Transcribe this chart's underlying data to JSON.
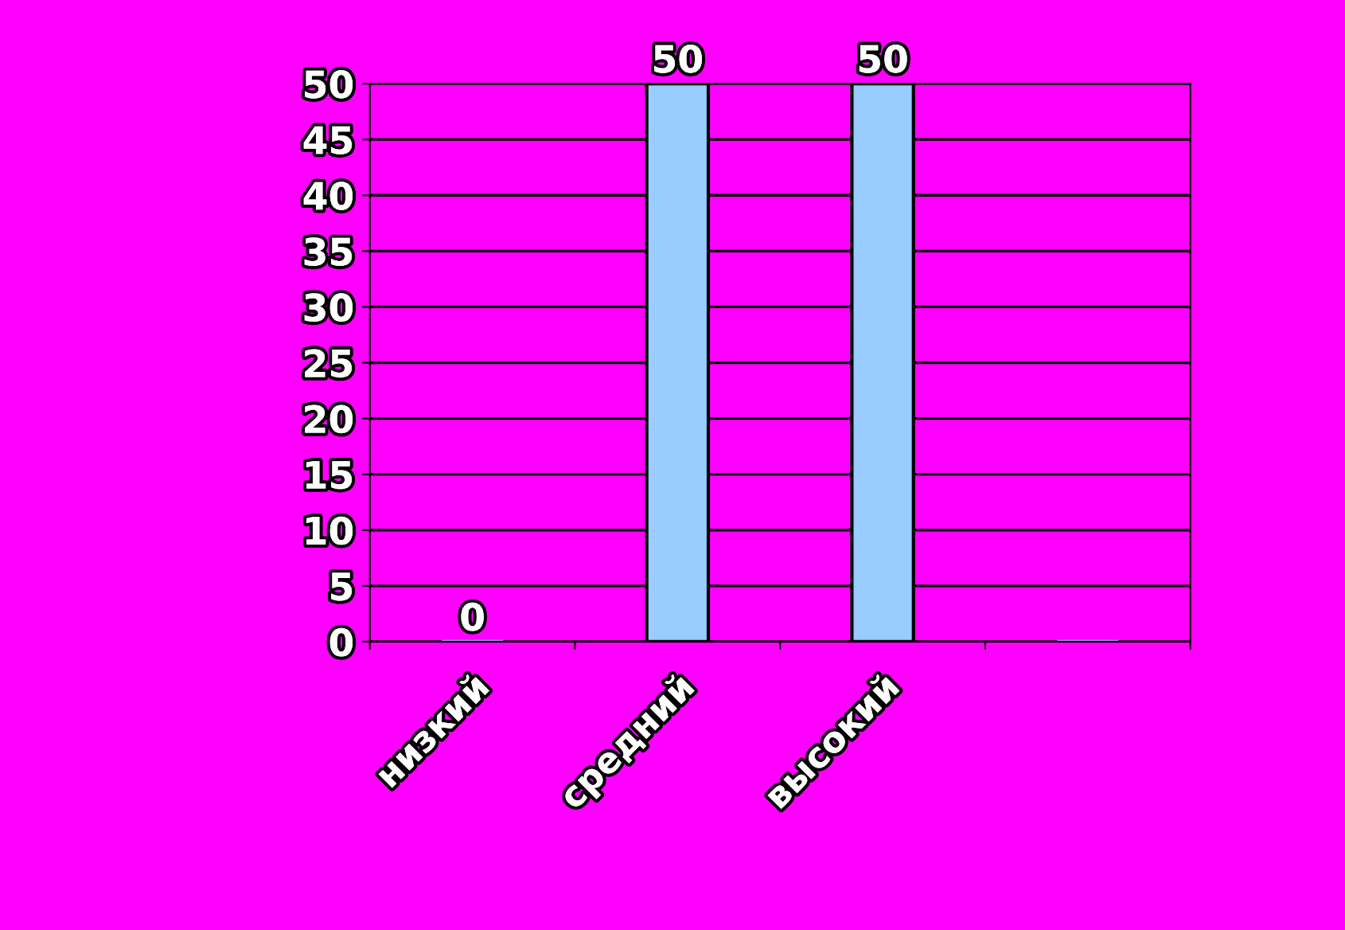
{
  "chart_data": {
    "type": "bar",
    "categories": [
      "низкий",
      "средний",
      "высокий",
      null
    ],
    "values": [
      0,
      50,
      50,
      null
    ],
    "color": "#99ccff",
    "ylim": [
      0,
      50
    ],
    "yticks": [
      0,
      5,
      10,
      15,
      20,
      25,
      30,
      35,
      40,
      45,
      50
    ],
    "grid": "y",
    "data_labels": true,
    "legend": false
  }
}
